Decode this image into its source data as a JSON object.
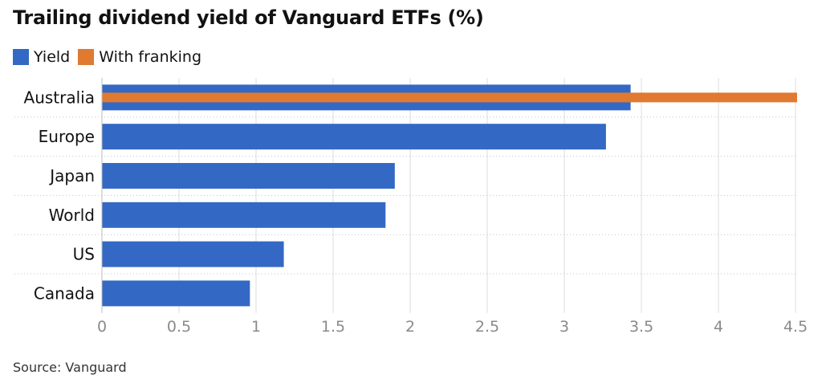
{
  "title": "Trailing dividend yield of Vanguard ETFs (%)",
  "source": "Source: Vanguard",
  "legend": [
    {
      "label": "Yield",
      "color": "#3369c4"
    },
    {
      "label": "With franking",
      "color": "#e07a30"
    }
  ],
  "chart_data": {
    "type": "bar",
    "orientation": "horizontal",
    "title": "Trailing dividend yield of Vanguard ETFs (%)",
    "categories": [
      "Australia",
      "Europe",
      "Japan",
      "World",
      "US",
      "Canada"
    ],
    "series": [
      {
        "name": "Yield",
        "color": "#3369c4",
        "values": [
          3.43,
          3.27,
          1.9,
          1.84,
          1.18,
          0.96
        ]
      },
      {
        "name": "With franking",
        "color": "#e07a30",
        "values": [
          4.51,
          null,
          null,
          null,
          null,
          null
        ]
      }
    ],
    "xticks": [
      "0",
      "0.5",
      "1",
      "1.5",
      "2",
      "2.5",
      "3",
      "3.5",
      "4",
      "4.5"
    ],
    "xlim": [
      0,
      4.51
    ],
    "grid": true,
    "legend_position": "top-left"
  }
}
